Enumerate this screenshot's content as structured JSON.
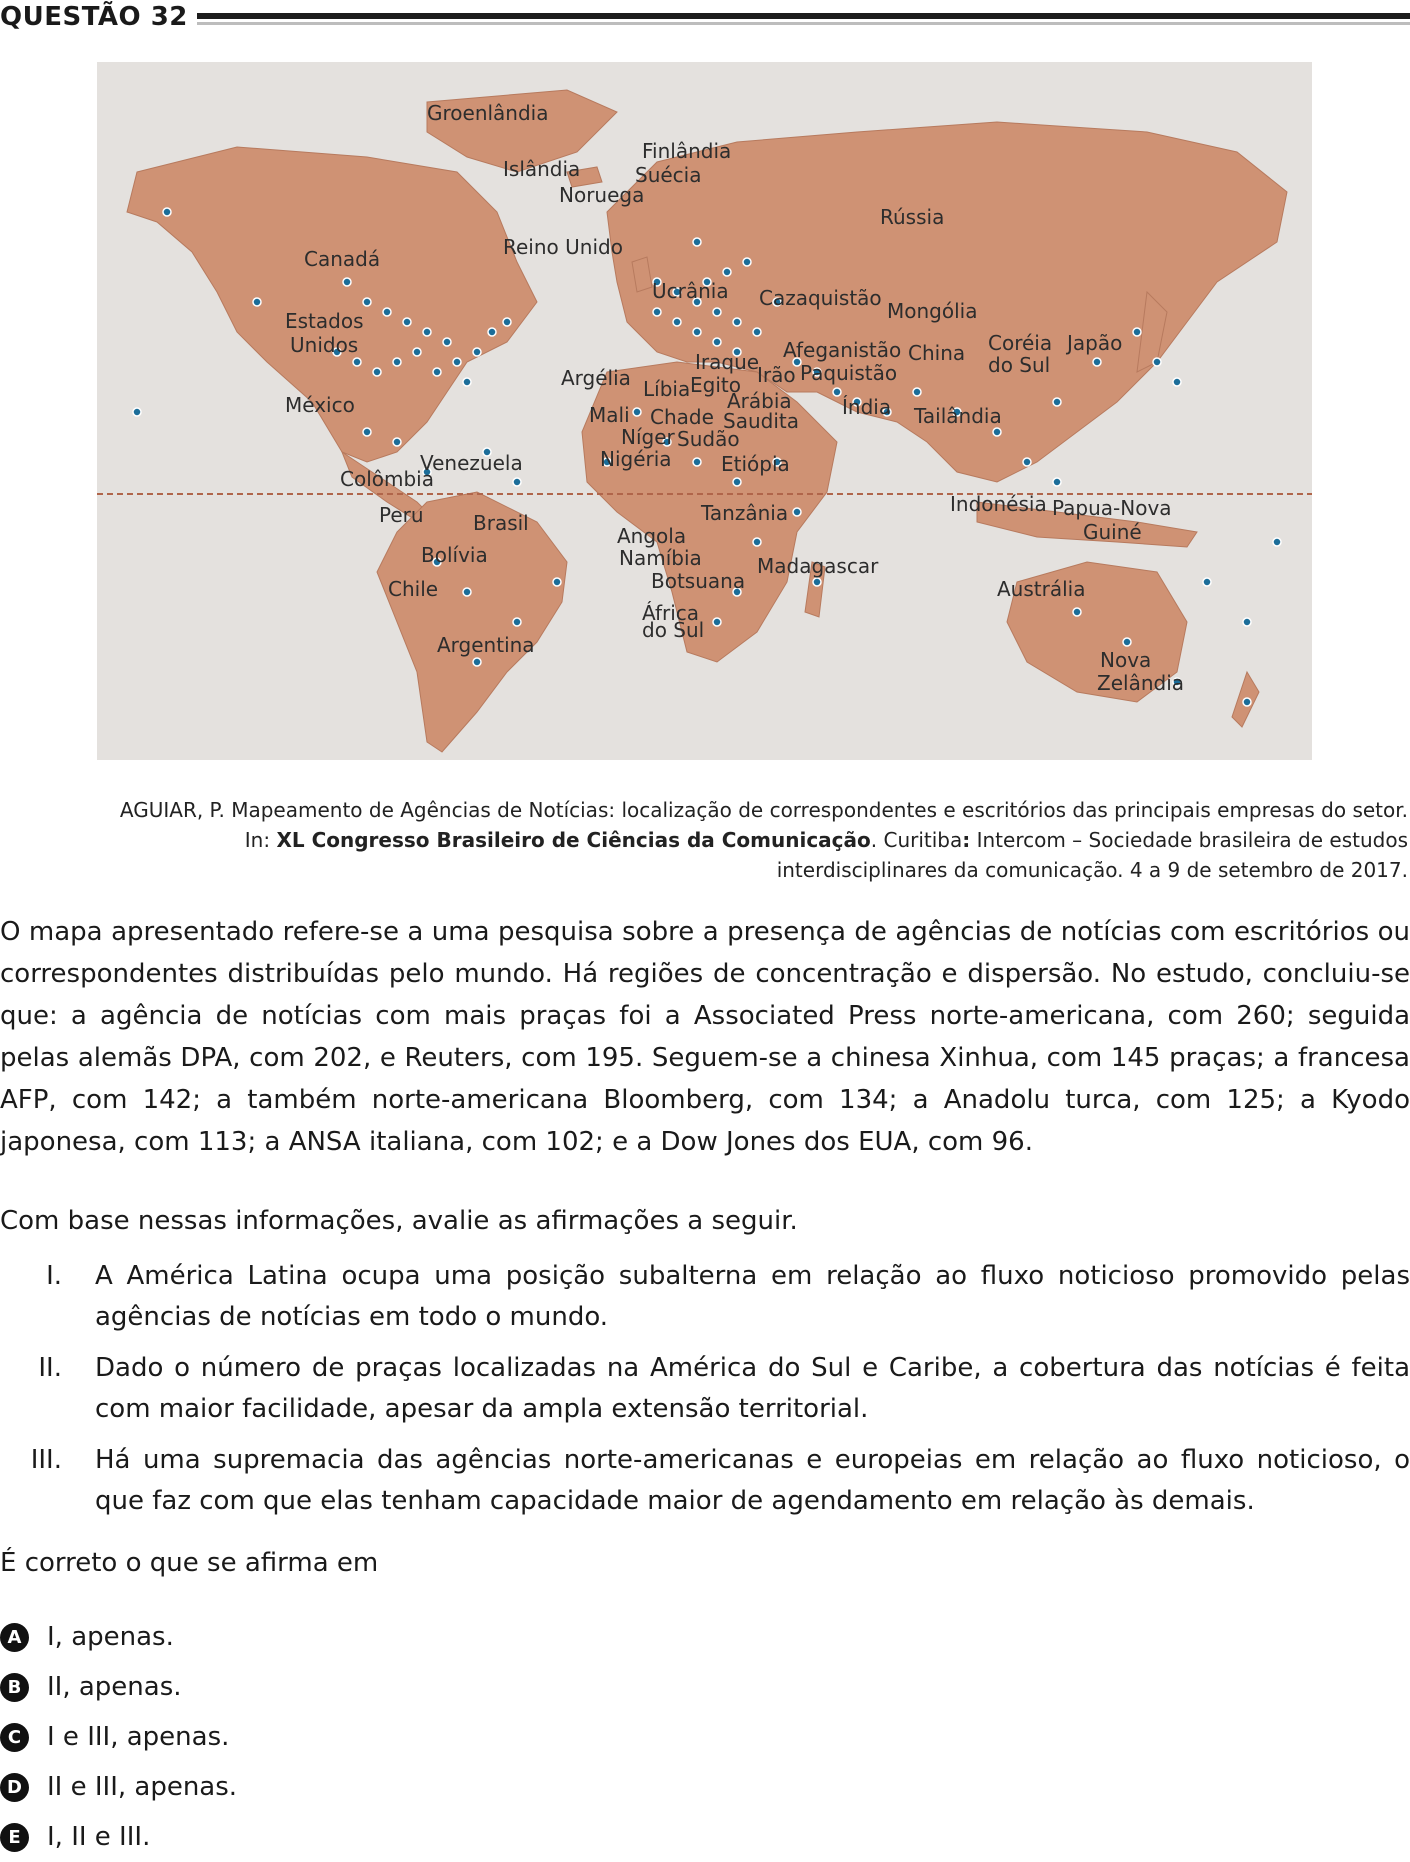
{
  "header": {
    "title": "QUESTÃO 32"
  },
  "map": {
    "labels": {
      "groenlandia": "Groenlândia",
      "islandia": "Islândia",
      "finlandia": "Finlândia",
      "suecia": "Suécia",
      "noruega": "Noruega",
      "russia": "Rússia",
      "reino_unido": "Reino Unido",
      "canada": "Canadá",
      "ucrania": "Ucrânia",
      "cazaquistao": "Cazaquistão",
      "mongolia": "Mongólia",
      "estados": "Estados",
      "unidos": "Unidos",
      "iraque": "Iraque",
      "afeganistao": "Afeganistão",
      "china": "China",
      "coreia": "Coréia",
      "do_sul": "do Sul",
      "japao": "Japão",
      "argelia": "Argélia",
      "libia": "Líbia",
      "egito": "Egito",
      "irao": "Irão",
      "paquistao": "Paquistão",
      "mexico": "México",
      "arabia": "Arábia",
      "saudita": "Saudita",
      "india": "Índia",
      "mali": "Mali",
      "chade": "Chade",
      "tailandia": "Tailândia",
      "niger": "Níger",
      "sudao": "Sudão",
      "venezuela": "Venezuela",
      "nigeria": "Nigéria",
      "etiopia": "Etiópia",
      "colombia": "Colômbia",
      "indonesia": "Indonésia",
      "papua": "Papua-Nova",
      "guine": "Guiné",
      "peru": "Peru",
      "brasil": "Brasil",
      "tanzania": "Tanzânia",
      "angola": "Angola",
      "bolivia": "Bolívia",
      "namibia": "Namíbia",
      "madagascar": "Madagascar",
      "botsuana": "Botsuana",
      "australia": "Austrália",
      "chile": "Chile",
      "africa": "África",
      "africa_sul": "do Sul",
      "argentina": "Argentina",
      "nova": "Nova",
      "zelandia": "Zelândia"
    }
  },
  "caption": {
    "line1": "AGUIAR, P. Mapeamento de Agências de Notícias: localização de correspondentes e escritórios das principais empresas do setor.",
    "in_prefix": "In: ",
    "event": "XL Congresso Brasileiro de Ciências da Comunicação",
    "city": ". Curitiba",
    "colon": ":",
    "publisher": " Intercom – Sociedade brasileira de estudos interdisciplinares da comunicação. 4 a 9 de setembro de 2017."
  },
  "paragraph1": "O mapa apresentado refere-se a uma pesquisa sobre a presença de agências de notícias com escritórios ou correspondentes distribuídas pelo mundo. Há regiões de concentração e dispersão. No estudo, concluiu-se que: a agência de notícias com mais praças foi a Associated Press norte-americana, com 260; seguida pelas alemãs DPA, com 202, e Reuters, com 195. Seguem-se a chinesa Xinhua, com 145 praças; a francesa AFP, com 142; a também norte-americana Bloomberg, com 134; a Anadolu turca, com 125; a Kyodo japonesa, com 113; a ANSA italiana, com 102; e a Dow Jones dos EUA, com 96.",
  "paragraph2": "Com base nessas informações, avalie as afirmações a seguir.",
  "statements": [
    {
      "num": "I.",
      "text": "A América Latina ocupa uma posição subalterna em relação ao fluxo noticioso promovido pelas agências de notícias em todo o mundo."
    },
    {
      "num": "II.",
      "text": "Dado o número de praças localizadas na América do Sul e Caribe, a cobertura das notícias é feita com maior facilidade, apesar da ampla extensão territorial."
    },
    {
      "num": "III.",
      "text": "Há uma supremacia das agências norte-americanas e europeias em relação ao fluxo noticioso, o que faz com que elas tenham capacidade maior de agendamento em relação às demais."
    }
  ],
  "prompt": "É correto o que se afirma em",
  "options": [
    {
      "letter": "A",
      "text": "I, apenas."
    },
    {
      "letter": "B",
      "text": "II, apenas."
    },
    {
      "letter": "C",
      "text": "I e III, apenas."
    },
    {
      "letter": "D",
      "text": "II e III, apenas."
    },
    {
      "letter": "E",
      "text": "I, II e III."
    }
  ],
  "colors": {
    "land": "#cf9274",
    "land_dark": "#b9785a",
    "ocean": "#e4e1de",
    "marker": "#1b6d99",
    "equator": "#b0654a"
  }
}
